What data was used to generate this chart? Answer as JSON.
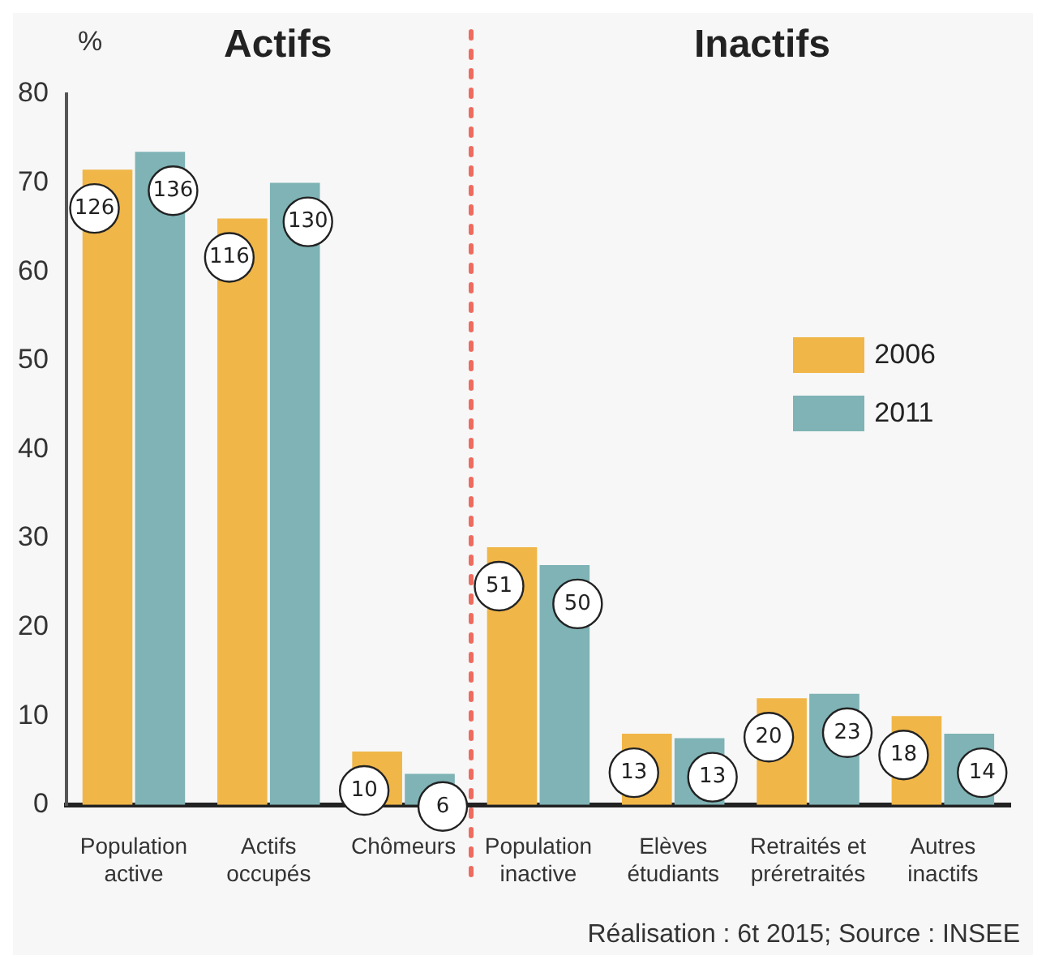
{
  "chart_data": {
    "type": "bar",
    "ylabel": "%",
    "categories": [
      "Population active",
      "Actifs occupés",
      "Chômeurs",
      "Population inactive",
      "Elèves étudiants",
      "Retraités et préretraités",
      "Autres inactifs"
    ],
    "series": [
      {
        "name": "2006",
        "color": "#f0b648",
        "values": [
          71.5,
          66,
          6,
          29,
          8,
          12,
          10
        ]
      },
      {
        "name": "2011",
        "color": "#7fb3b5",
        "values": [
          73.5,
          70,
          3.5,
          27,
          7.5,
          12.5,
          8
        ]
      }
    ],
    "ylim": [
      0,
      80
    ],
    "yticks": [
      0,
      10,
      20,
      30,
      40,
      50,
      60,
      70,
      80
    ],
    "grid": false,
    "legend": "right",
    "annotations": [
      "Actifs",
      "Inactifs",
      "Réalisation : 6t 2015; Source : INSEE",
      {
        "text": "126",
        "x": "Population active",
        "y": 71.5
      },
      {
        "text": "136",
        "x": "Population active",
        "y": 73.5
      },
      {
        "text": "116",
        "x": "Actifs occupés",
        "y": 66
      },
      {
        "text": "130",
        "x": "Actifs occupés",
        "y": 70
      },
      {
        "text": "10",
        "x": "Chômeurs",
        "y": 6
      },
      {
        "text": "6",
        "x": "Chômeurs",
        "y": 3.5
      },
      {
        "text": "51",
        "x": "Population inactive",
        "y": 29
      },
      {
        "text": "50",
        "x": "Population inactive",
        "y": 27
      },
      {
        "text": "13",
        "x": "Elèves étudiants",
        "y": 8
      },
      {
        "text": "13",
        "x": "Elèves étudiants",
        "y": 7.5
      },
      {
        "text": "20",
        "x": "Retraités et préretraités",
        "y": 12
      },
      {
        "text": "23",
        "x": "Retraités et préretraités",
        "y": 12.5
      },
      {
        "text": "18",
        "x": "Autres inactifs",
        "y": 10
      },
      {
        "text": "14",
        "x": "Autres inactifs",
        "y": 8
      }
    ]
  }
}
